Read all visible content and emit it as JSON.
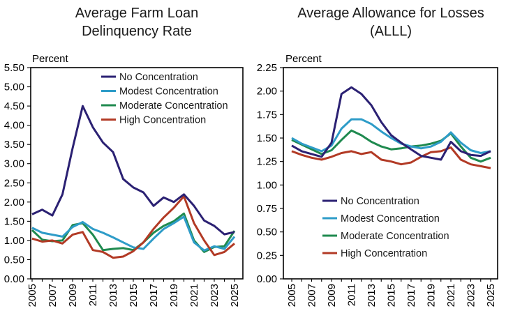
{
  "figure": {
    "background": "#ffffff",
    "text_color": "#1a1a1a",
    "axis_color": "#000000"
  },
  "chart_data": [
    {
      "type": "line",
      "title": "Average Farm Loan Delinquency Rate",
      "title_lines": [
        "Average Farm Loan",
        "Delinquency Rate"
      ],
      "ylabel": "Percent",
      "xlabel": "",
      "ylim": [
        0,
        5.5
      ],
      "ytick_step": 0.5,
      "ytick_labels": [
        "0.00",
        "0.50",
        "1.00",
        "1.50",
        "2.00",
        "2.50",
        "3.00",
        "3.50",
        "4.00",
        "4.50",
        "5.00",
        "5.50"
      ],
      "x": [
        2005,
        2006,
        2007,
        2008,
        2009,
        2010,
        2011,
        2012,
        2013,
        2014,
        2015,
        2016,
        2017,
        2018,
        2019,
        2020,
        2021,
        2022,
        2023,
        2024,
        2025
      ],
      "x_tick_labels": [
        "2005",
        "2007",
        "2009",
        "2011",
        "2013",
        "2015",
        "2017",
        "2019",
        "2021",
        "2023",
        "2025"
      ],
      "grid": false,
      "legend_position": "top-right-inside",
      "series": [
        {
          "name": "No Concentration",
          "color": "#2b2173",
          "values": [
            1.68,
            1.8,
            1.65,
            2.2,
            3.4,
            4.5,
            3.95,
            3.55,
            3.3,
            2.6,
            2.38,
            2.25,
            1.9,
            2.12,
            2.0,
            2.2,
            1.9,
            1.52,
            1.38,
            1.16,
            1.22
          ]
        },
        {
          "name": "Modest Concentration",
          "color": "#2e9cc8",
          "values": [
            1.33,
            1.2,
            1.15,
            1.1,
            1.35,
            1.48,
            1.3,
            1.2,
            1.08,
            0.95,
            0.82,
            0.78,
            1.05,
            1.3,
            1.45,
            1.62,
            0.95,
            0.74,
            0.85,
            0.78,
            1.1
          ]
        },
        {
          "name": "Moderate Concentration",
          "color": "#1f8a4f",
          "values": [
            1.27,
            1.02,
            0.98,
            1.0,
            1.4,
            1.45,
            1.15,
            0.75,
            0.78,
            0.8,
            0.75,
            0.95,
            1.2,
            1.38,
            1.5,
            1.7,
            1.0,
            0.7,
            0.83,
            0.85,
            1.25
          ]
        },
        {
          "name": "High Concentration",
          "color": "#b23a25",
          "values": [
            1.05,
            0.97,
            1.0,
            0.92,
            1.15,
            1.22,
            0.75,
            0.7,
            0.55,
            0.58,
            0.72,
            0.95,
            1.3,
            1.6,
            1.85,
            2.15,
            1.45,
            1.0,
            0.62,
            0.7,
            0.92
          ]
        }
      ]
    },
    {
      "type": "line",
      "title": "Average Allowance for Losses (ALLL)",
      "title_lines": [
        "Average Allowance for Losses",
        "(ALLL)"
      ],
      "ylabel": "Percent",
      "xlabel": "",
      "ylim": [
        0,
        2.25
      ],
      "ytick_step": 0.25,
      "ytick_labels": [
        "0.00",
        "0.25",
        "0.50",
        "0.75",
        "1.00",
        "1.25",
        "1.50",
        "1.75",
        "2.00",
        "2.25"
      ],
      "x": [
        2005,
        2006,
        2007,
        2008,
        2009,
        2010,
        2011,
        2012,
        2013,
        2014,
        2015,
        2016,
        2017,
        2018,
        2019,
        2020,
        2021,
        2022,
        2023,
        2024,
        2025
      ],
      "x_tick_labels": [
        "2005",
        "2007",
        "2009",
        "2011",
        "2013",
        "2015",
        "2017",
        "2019",
        "2021",
        "2023",
        "2025"
      ],
      "grid": false,
      "legend_position": "bottom-left-inside",
      "series": [
        {
          "name": "No Concentration",
          "color": "#2b2173",
          "values": [
            1.42,
            1.36,
            1.33,
            1.3,
            1.45,
            1.97,
            2.04,
            1.97,
            1.85,
            1.67,
            1.53,
            1.45,
            1.38,
            1.31,
            1.29,
            1.27,
            1.46,
            1.36,
            1.32,
            1.31,
            1.36
          ]
        },
        {
          "name": "Modest Concentration",
          "color": "#2e9cc8",
          "values": [
            1.5,
            1.44,
            1.4,
            1.36,
            1.42,
            1.6,
            1.7,
            1.7,
            1.65,
            1.57,
            1.5,
            1.44,
            1.41,
            1.39,
            1.41,
            1.46,
            1.56,
            1.45,
            1.37,
            1.34,
            1.36
          ]
        },
        {
          "name": "Moderate Concentration",
          "color": "#1f8a4f",
          "values": [
            1.48,
            1.43,
            1.38,
            1.33,
            1.37,
            1.48,
            1.58,
            1.53,
            1.46,
            1.41,
            1.38,
            1.39,
            1.41,
            1.42,
            1.44,
            1.47,
            1.55,
            1.41,
            1.29,
            1.25,
            1.29
          ]
        },
        {
          "name": "High Concentration",
          "color": "#b23a25",
          "values": [
            1.36,
            1.32,
            1.29,
            1.27,
            1.3,
            1.34,
            1.36,
            1.33,
            1.35,
            1.27,
            1.25,
            1.22,
            1.24,
            1.3,
            1.35,
            1.36,
            1.4,
            1.27,
            1.22,
            1.2,
            1.18
          ]
        }
      ]
    }
  ]
}
